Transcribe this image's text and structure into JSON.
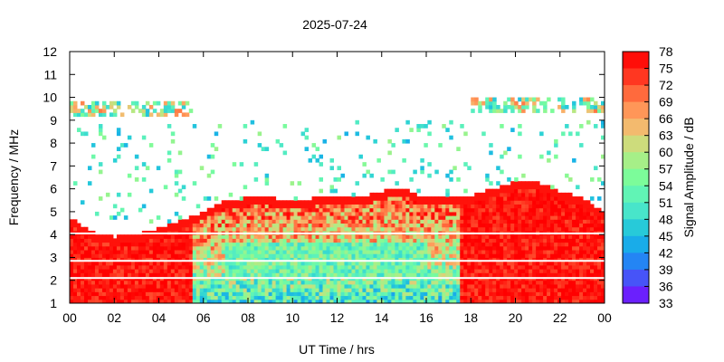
{
  "chart_data": {
    "type": "heatmap",
    "title": "2025-07-24",
    "xlabel": "UT Time / hrs",
    "ylabel": "Frequency / MHz",
    "colorbar_label": "Signal Amplitude / dB",
    "x_ticks": [
      "00",
      "02",
      "04",
      "06",
      "08",
      "10",
      "12",
      "14",
      "16",
      "18",
      "20",
      "22",
      "00"
    ],
    "xlim": [
      0,
      24
    ],
    "y_ticks": [
      "1",
      "2",
      "3",
      "4",
      "5",
      "6",
      "7",
      "8",
      "9",
      "10",
      "11",
      "12"
    ],
    "ylim": [
      1,
      12
    ],
    "colorbar_ticks": [
      "78",
      "75",
      "72",
      "69",
      "66",
      "63",
      "60",
      "57",
      "54",
      "51",
      "48",
      "45",
      "42",
      "39",
      "36",
      "33"
    ],
    "zlim": [
      33,
      78
    ],
    "colormap": [
      "#7f00ff",
      "#5a3cfc",
      "#3a64f5",
      "#1996f3",
      "#19b4e6",
      "#2ad0d6",
      "#4de8c8",
      "#62f5b4",
      "#7cfc9a",
      "#a4f089",
      "#c8e07e",
      "#f0c072",
      "#ffa05e",
      "#ff7a46",
      "#ff4a2c",
      "#ff1a10",
      "#ff0000"
    ],
    "grid": false,
    "foF2_boundary": [
      [
        0.0,
        4.8
      ],
      [
        1.0,
        4.1
      ],
      [
        2.0,
        3.9
      ],
      [
        3.0,
        4.0
      ],
      [
        4.0,
        4.3
      ],
      [
        5.0,
        4.6
      ],
      [
        6.0,
        5.0
      ],
      [
        7.0,
        5.5
      ],
      [
        8.0,
        5.6
      ],
      [
        9.0,
        5.6
      ],
      [
        10.0,
        5.5
      ],
      [
        11.0,
        5.6
      ],
      [
        12.0,
        5.7
      ],
      [
        13.0,
        5.6
      ],
      [
        14.0,
        5.9
      ],
      [
        15.0,
        6.0
      ],
      [
        16.0,
        5.6
      ],
      [
        17.0,
        5.6
      ],
      [
        18.0,
        5.7
      ],
      [
        19.0,
        6.0
      ],
      [
        20.0,
        6.3
      ],
      [
        21.0,
        6.3
      ],
      [
        22.0,
        5.9
      ],
      [
        23.0,
        5.6
      ],
      [
        24.0,
        5.0
      ]
    ],
    "es_layer": [
      {
        "x0": 0.0,
        "x1": 5.5,
        "y0": 9.2,
        "y1": 9.8
      },
      {
        "x0": 18.0,
        "x1": 24.0,
        "y0": 9.3,
        "y1": 10.0
      }
    ],
    "gaps_mhz": [
      4.05,
      2.85,
      2.1
    ]
  }
}
